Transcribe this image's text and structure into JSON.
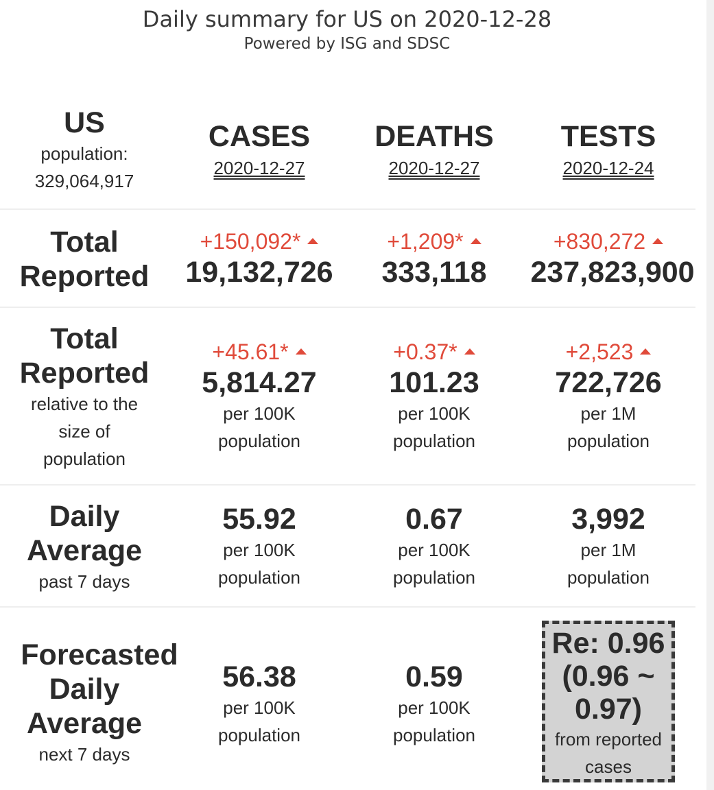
{
  "header": {
    "title": "Daily summary for US on 2020-12-28",
    "subtitle": "Powered by ISG and SDSC"
  },
  "region": {
    "name": "US",
    "population_label": "population:",
    "population": "329,064,917"
  },
  "columns": [
    {
      "label": "CASES",
      "date": "2020-12-27"
    },
    {
      "label": "DEATHS",
      "date": "2020-12-27"
    },
    {
      "label": "TESTS",
      "date": "2020-12-24"
    }
  ],
  "total_reported": {
    "label_line1": "Total",
    "label_line2": "Reported",
    "cases": {
      "delta": "+150,092*",
      "value": "19,132,726"
    },
    "deaths": {
      "delta": "+1,209*",
      "value": "333,118"
    },
    "tests": {
      "delta": "+830,272",
      "value": "237,823,900"
    }
  },
  "relative": {
    "label_line1": "Total",
    "label_line2": "Reported",
    "note_line1": "relative to the",
    "note_line2": "size of",
    "note_line3": "population",
    "cases": {
      "delta": "+45.61*",
      "value": "5,814.27",
      "unit": "per 100K",
      "unit2": "population"
    },
    "deaths": {
      "delta": "+0.37*",
      "value": "101.23",
      "unit": "per 100K",
      "unit2": "population"
    },
    "tests": {
      "delta": "+2,523",
      "value": "722,726",
      "unit": "per 1M",
      "unit2": "population"
    }
  },
  "daily_average": {
    "label_line1": "Daily",
    "label_line2": "Average",
    "note": "past 7 days",
    "cases": {
      "value": "55.92",
      "unit": "per 100K",
      "unit2": "population"
    },
    "deaths": {
      "value": "0.67",
      "unit": "per 100K",
      "unit2": "population"
    },
    "tests": {
      "value": "3,992",
      "unit": "per 1M",
      "unit2": "population"
    }
  },
  "forecast": {
    "label_line1": "Forecasted",
    "label_line2": "Daily",
    "label_line3": "Average",
    "note": "next 7 days",
    "cases": {
      "value": "56.38",
      "unit": "per 100K",
      "unit2": "population"
    },
    "deaths": {
      "value": "0.59",
      "unit": "per 100K",
      "unit2": "population"
    },
    "re": {
      "line1": "Re: 0.96",
      "line2": "(0.96 ~",
      "line3": "0.97)",
      "note1": "from reported",
      "note2": "cases"
    }
  },
  "colors": {
    "increase": "#e04a3a",
    "text": "#2b2b2b",
    "re_box_bg": "#d3d3d3"
  }
}
